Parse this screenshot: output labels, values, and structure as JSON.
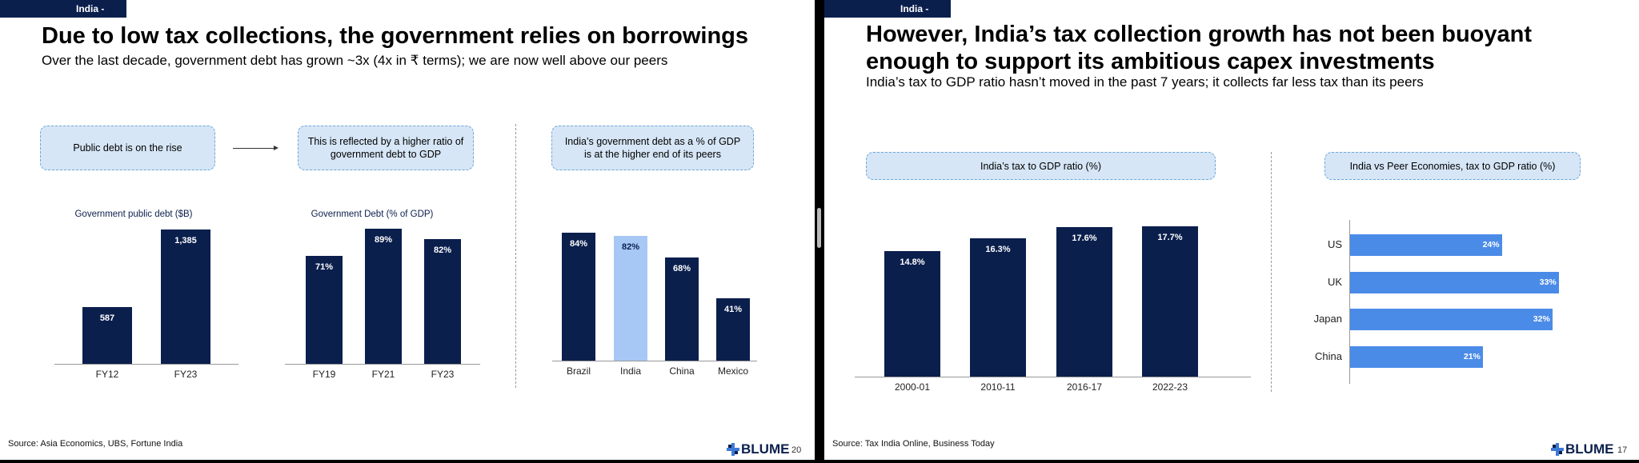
{
  "left": {
    "tag": "India - GFCF",
    "title": "Due to low tax collections, the government relies on borrowings",
    "subtitle": "Over the last decade, government debt has grown ~3x (4x in ₹ terms); we are now well above our peers",
    "callouts": [
      "Public debt is on the rise",
      "This is reflected by a higher ratio of government debt to GDP",
      "India’s government debt as a % of GDP is at the higher end of its peers"
    ],
    "source": "Source: Asia Economics, UBS, Fortune India",
    "logo": "BLUME",
    "page": "20"
  },
  "right": {
    "tag": "India - GFCF",
    "title_line1": "However, India’s tax collection growth has not been buoyant",
    "title_line2": "enough to support its ambitious capex investments",
    "subtitle": "India’s tax to GDP ratio hasn’t moved in the past 7 years; it collects far less tax than its peers",
    "source": "Source: Tax India Online, Business Today",
    "logo": "BLUME",
    "page": "17"
  },
  "chart_data": [
    {
      "type": "bar",
      "title": "Government public debt ($B)",
      "categories": [
        "FY12",
        "FY23"
      ],
      "values": [
        587,
        1385
      ],
      "labels": [
        "587",
        "1,385"
      ],
      "ylim": [
        0,
        1500
      ]
    },
    {
      "type": "bar",
      "title": "Government Debt (% of GDP)",
      "categories": [
        "FY19",
        "FY21",
        "FY23"
      ],
      "values": [
        71,
        89,
        82
      ],
      "labels": [
        "71%",
        "89%",
        "82%"
      ],
      "ylim": [
        0,
        100
      ]
    },
    {
      "type": "bar",
      "title": "",
      "categories": [
        "Brazil",
        "India",
        "China",
        "Mexico"
      ],
      "values": [
        84,
        82,
        68,
        41
      ],
      "labels": [
        "84%",
        "82%",
        "68%",
        "41%"
      ],
      "highlight": "India",
      "highlight_color": "#a7c8f4",
      "ylim": [
        0,
        100
      ]
    },
    {
      "type": "bar",
      "title": "India’s tax to GDP ratio (%)",
      "categories": [
        "2000-01",
        "2010-11",
        "2016-17",
        "2022-23"
      ],
      "values": [
        14.8,
        16.3,
        17.6,
        17.7
      ],
      "labels": [
        "14.8%",
        "16.3%",
        "17.6%",
        "17.7%"
      ],
      "ylim": [
        0,
        20
      ]
    },
    {
      "type": "bar",
      "orientation": "horizontal",
      "title": "India vs Peer Economies, tax to GDP ratio (%)",
      "categories": [
        "US",
        "UK",
        "Japan",
        "China"
      ],
      "values": [
        24,
        33,
        32,
        21
      ],
      "labels": [
        "24%",
        "33%",
        "32%",
        "21%"
      ],
      "xlim": [
        0,
        36
      ]
    }
  ],
  "colors": {
    "navy": "#0b1f4d",
    "highlight": "#a7c8f4",
    "callout_fill": "#d6e6f6",
    "hbar": "#4b8be8"
  }
}
